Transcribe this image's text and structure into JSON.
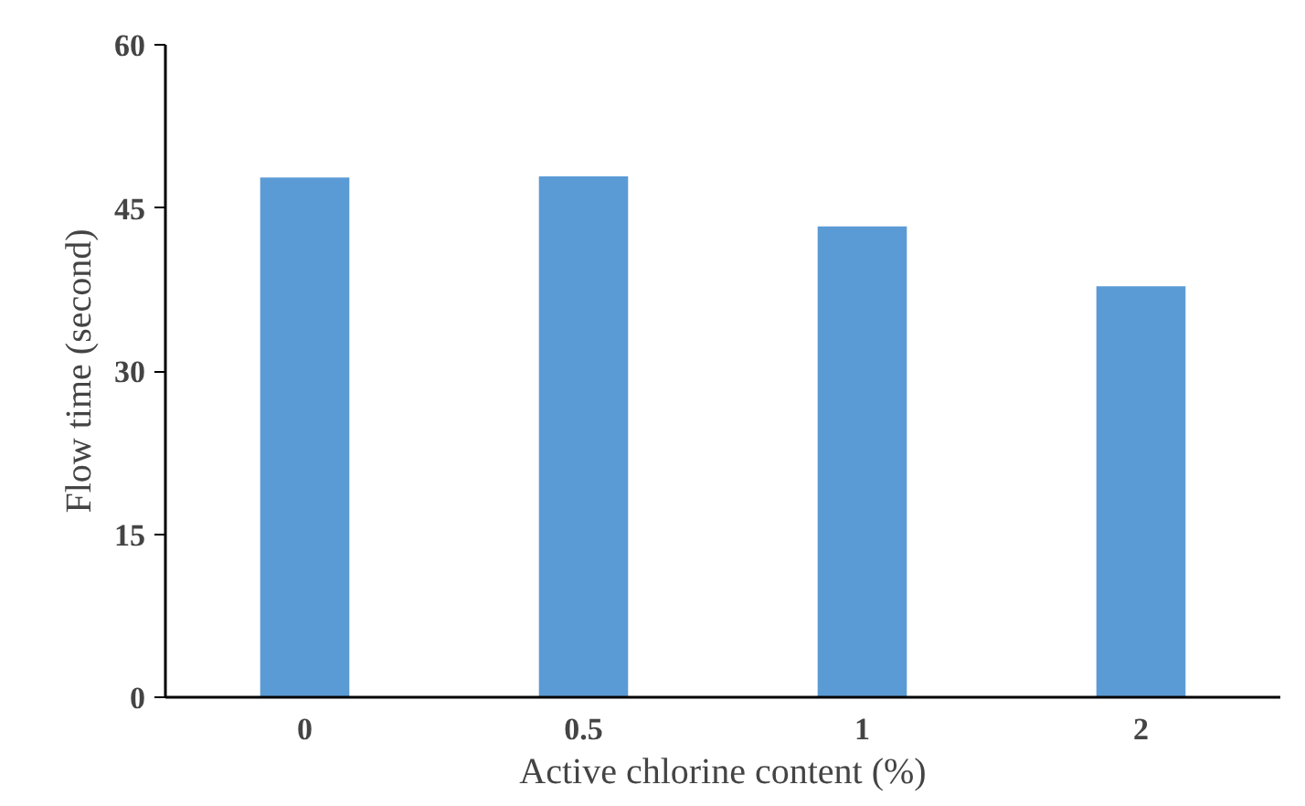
{
  "chart_data": {
    "type": "bar",
    "xlabel": "Active chlorine content (%)",
    "ylabel": "Flow time (second)",
    "categories": [
      "0",
      "0.5",
      "1",
      "2"
    ],
    "values": [
      47.8,
      47.9,
      43.3,
      37.8
    ],
    "color": "#5b9bd5",
    "ylim": [
      0,
      60
    ],
    "yticks": [
      0,
      15,
      30,
      45,
      60
    ],
    "grid": false
  }
}
